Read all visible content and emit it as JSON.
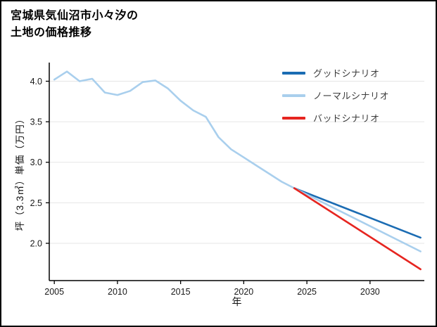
{
  "page": {
    "title_line1": "宮城県気仙沼市小々汐の",
    "title_line2": "土地の価格推移"
  },
  "chart_data": {
    "type": "line",
    "title": "宮城県気仙沼市小々汐の土地の価格推移",
    "xlabel": "年",
    "ylabel": "坪（3.3㎡）単価（万円）",
    "xlim": [
      2004.6,
      2034.3
    ],
    "ylim": [
      1.54,
      4.23
    ],
    "xticks": [
      "2005",
      "2010",
      "2015",
      "2020",
      "2025",
      "2030"
    ],
    "yticks": [
      "2.0",
      "2.5",
      "3.0",
      "3.5",
      "4.0"
    ],
    "grid": "horizontal",
    "grid_color": "#e6e6e6",
    "axis_color": "#000000",
    "legend_position": "top-right",
    "series": [
      {
        "key": "historical",
        "color": "#a9cfed",
        "width": 2.6,
        "x": [
          2005,
          2006,
          2007,
          2008,
          2009,
          2010,
          2011,
          2012,
          2013,
          2014,
          2015,
          2016,
          2017,
          2018,
          2019,
          2020,
          2021,
          2022,
          2023,
          2024
        ],
        "y": [
          4.02,
          4.12,
          4.0,
          4.03,
          3.86,
          3.83,
          3.88,
          3.99,
          4.01,
          3.91,
          3.76,
          3.64,
          3.56,
          3.31,
          3.16,
          3.06,
          2.96,
          2.86,
          2.76,
          2.68
        ]
      },
      {
        "key": "good-scenario",
        "color": "#1b6cb3",
        "width": 2.6,
        "x": [
          2024,
          2034
        ],
        "y": [
          2.68,
          2.07
        ]
      },
      {
        "key": "normal-scenario",
        "color": "#a9cfed",
        "width": 2.6,
        "x": [
          2024,
          2034
        ],
        "y": [
          2.68,
          1.9
        ]
      },
      {
        "key": "bad-scenario",
        "color": "#e62520",
        "width": 2.6,
        "x": [
          2024,
          2034
        ],
        "y": [
          2.68,
          1.68
        ]
      }
    ],
    "legend": [
      {
        "label": "グッドシナリオ",
        "color": "#1b6cb3"
      },
      {
        "label": "ノーマルシナリオ",
        "color": "#a9cfed"
      },
      {
        "label": "バッドシナリオ",
        "color": "#e62520"
      }
    ]
  }
}
